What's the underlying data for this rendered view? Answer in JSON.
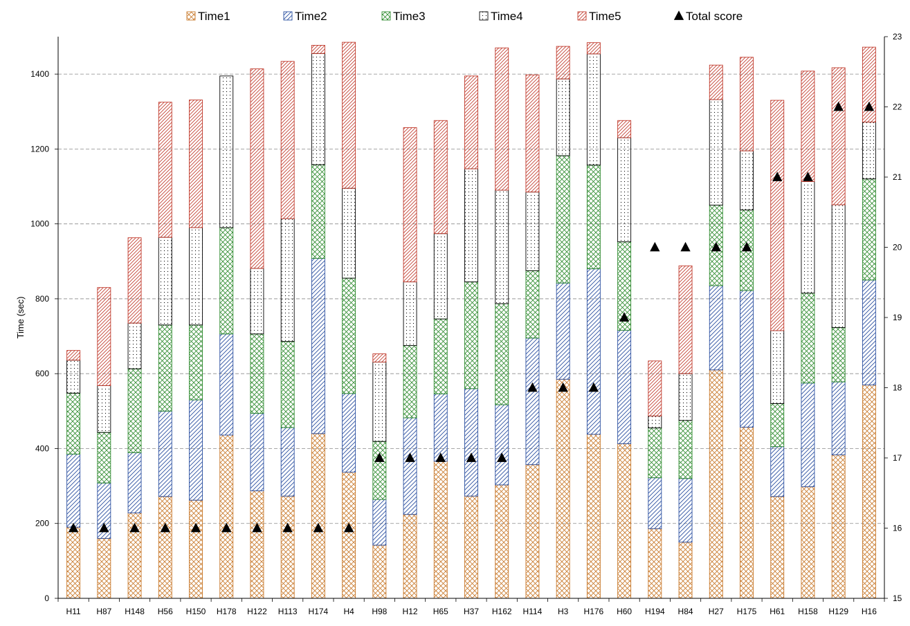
{
  "chart_data": {
    "type": "bar",
    "stacked": true,
    "ylabel": "Time (sec)",
    "ylim": [
      0,
      1500
    ],
    "y_ticks": [
      0,
      200,
      400,
      600,
      800,
      1000,
      1200,
      1400
    ],
    "y2lim": [
      15,
      23
    ],
    "y2_ticks": [
      15,
      16,
      17,
      18,
      19,
      20,
      21,
      22,
      23
    ],
    "legend_position": "top",
    "categories": [
      "H11",
      "H87",
      "H148",
      "H56",
      "H150",
      "H178",
      "H122",
      "H113",
      "H174",
      "H4",
      "H98",
      "H12",
      "H65",
      "H37",
      "H162",
      "H114",
      "H3",
      "H176",
      "H60",
      "H194",
      "H84",
      "H27",
      "H175",
      "H61",
      "H158",
      "H129",
      "H16"
    ],
    "series": [
      {
        "name": "Time1",
        "color": "#c8782a",
        "pattern": "cross",
        "values": [
          190,
          160,
          228,
          272,
          262,
          436,
          287,
          273,
          440,
          337,
          142,
          224,
          366,
          273,
          303,
          357,
          585,
          438,
          413,
          186,
          150,
          610,
          457,
          272,
          298,
          383,
          570
        ]
      },
      {
        "name": "Time2",
        "color": "#2a4fa0",
        "pattern": "diag",
        "values": [
          195,
          148,
          161,
          228,
          268,
          270,
          207,
          183,
          468,
          210,
          122,
          258,
          180,
          287,
          214,
          338,
          257,
          442,
          303,
          136,
          170,
          225,
          365,
          133,
          277,
          195,
          280
        ]
      },
      {
        "name": "Time3",
        "color": "#2e8a2e",
        "pattern": "cross",
        "values": [
          163,
          135,
          224,
          230,
          200,
          284,
          212,
          230,
          250,
          308,
          155,
          193,
          200,
          285,
          270,
          180,
          340,
          277,
          236,
          133,
          155,
          215,
          215,
          115,
          240,
          145,
          270
        ]
      },
      {
        "name": "Time4",
        "color": "#000000",
        "pattern": "dots",
        "values": [
          88,
          125,
          122,
          234,
          260,
          405,
          175,
          328,
          297,
          240,
          212,
          170,
          228,
          302,
          303,
          210,
          205,
          297,
          278,
          32,
          125,
          282,
          158,
          195,
          298,
          328,
          152
        ]
      },
      {
        "name": "Time5",
        "color": "#c0392b",
        "pattern": "diag",
        "values": [
          26,
          262,
          228,
          361,
          341,
          0,
          533,
          420,
          22,
          390,
          22,
          412,
          302,
          248,
          380,
          313,
          87,
          30,
          46,
          147,
          288,
          92,
          250,
          615,
          295,
          366,
          200
        ]
      },
      {
        "name": "Total score",
        "type": "scatter",
        "axis": "right",
        "marker": "triangle",
        "values": [
          16,
          16,
          16,
          16,
          16,
          16,
          16,
          16,
          16,
          16,
          17,
          17,
          17,
          17,
          17,
          18,
          18,
          18,
          19,
          20,
          20,
          20,
          20,
          21,
          21,
          22,
          22
        ]
      }
    ]
  }
}
